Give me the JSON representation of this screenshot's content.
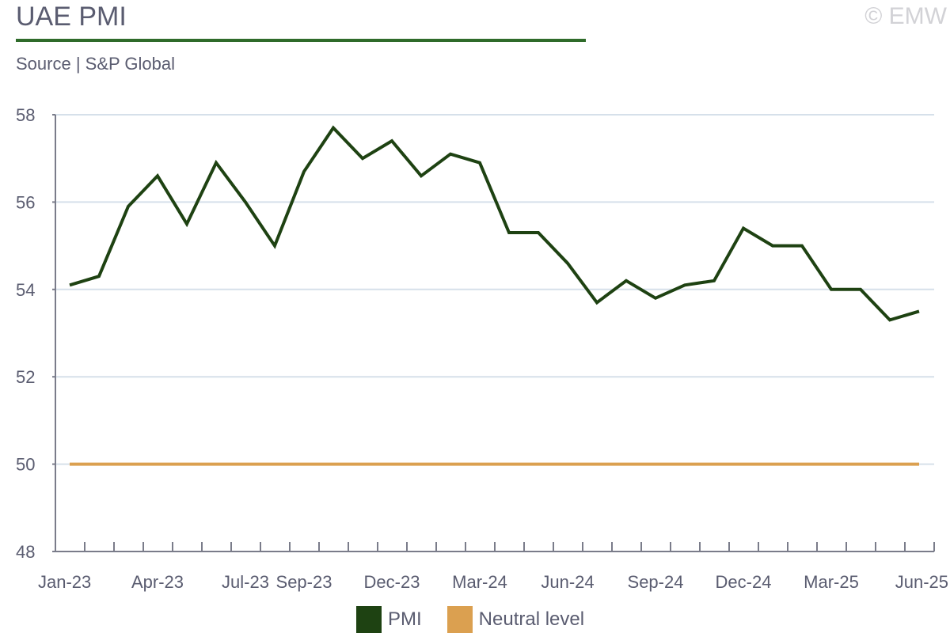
{
  "header": {
    "title": "UAE PMI",
    "source": "Source | S&P Global",
    "copyright": "© EMW"
  },
  "colors": {
    "pmi": "#1e4212",
    "neutral": "#dba050",
    "grid": "#d6e0ea",
    "axis": "#7a7c8a",
    "title_rule": "#2f6b2a"
  },
  "chart_data": {
    "type": "line",
    "title": "UAE PMI",
    "xlabel": "",
    "ylabel": "",
    "ylim": [
      48,
      58
    ],
    "yticks": [
      48,
      50,
      52,
      54,
      56,
      58
    ],
    "grid": true,
    "legend_position": "bottom",
    "x": [
      "Jan-23",
      "Feb-23",
      "Mar-23",
      "Apr-23",
      "May-23",
      "Jun-23",
      "Jul-23",
      "Aug-23",
      "Sep-23",
      "Oct-23",
      "Nov-23",
      "Dec-23",
      "Jan-24",
      "Feb-24",
      "Mar-24",
      "Apr-24",
      "May-24",
      "Jun-24",
      "Jul-24",
      "Aug-24",
      "Sep-24",
      "Oct-24",
      "Nov-24",
      "Dec-24",
      "Jan-25",
      "Feb-25",
      "Mar-25",
      "Apr-25",
      "May-25",
      "Jun-25"
    ],
    "x_tick_labels": [
      "Jan-23",
      "Apr-23",
      "Jul-23",
      "Sep-23",
      "Dec-23",
      "Mar-24",
      "Jun-24",
      "Sep-24",
      "Dec-24",
      "Mar-25",
      "Jun-25"
    ],
    "series": [
      {
        "name": "PMI",
        "values": [
          54.1,
          54.3,
          55.9,
          56.6,
          55.5,
          56.9,
          56.0,
          55.0,
          56.7,
          57.7,
          57.0,
          57.4,
          56.6,
          57.1,
          56.9,
          55.3,
          55.3,
          54.6,
          53.7,
          54.2,
          53.8,
          54.1,
          54.2,
          55.4,
          55.0,
          55.0,
          54.0,
          54.0,
          53.3,
          53.5
        ]
      },
      {
        "name": "Neutral level",
        "values": [
          50,
          50,
          50,
          50,
          50,
          50,
          50,
          50,
          50,
          50,
          50,
          50,
          50,
          50,
          50,
          50,
          50,
          50,
          50,
          50,
          50,
          50,
          50,
          50,
          50,
          50,
          50,
          50,
          50,
          50
        ]
      }
    ]
  }
}
